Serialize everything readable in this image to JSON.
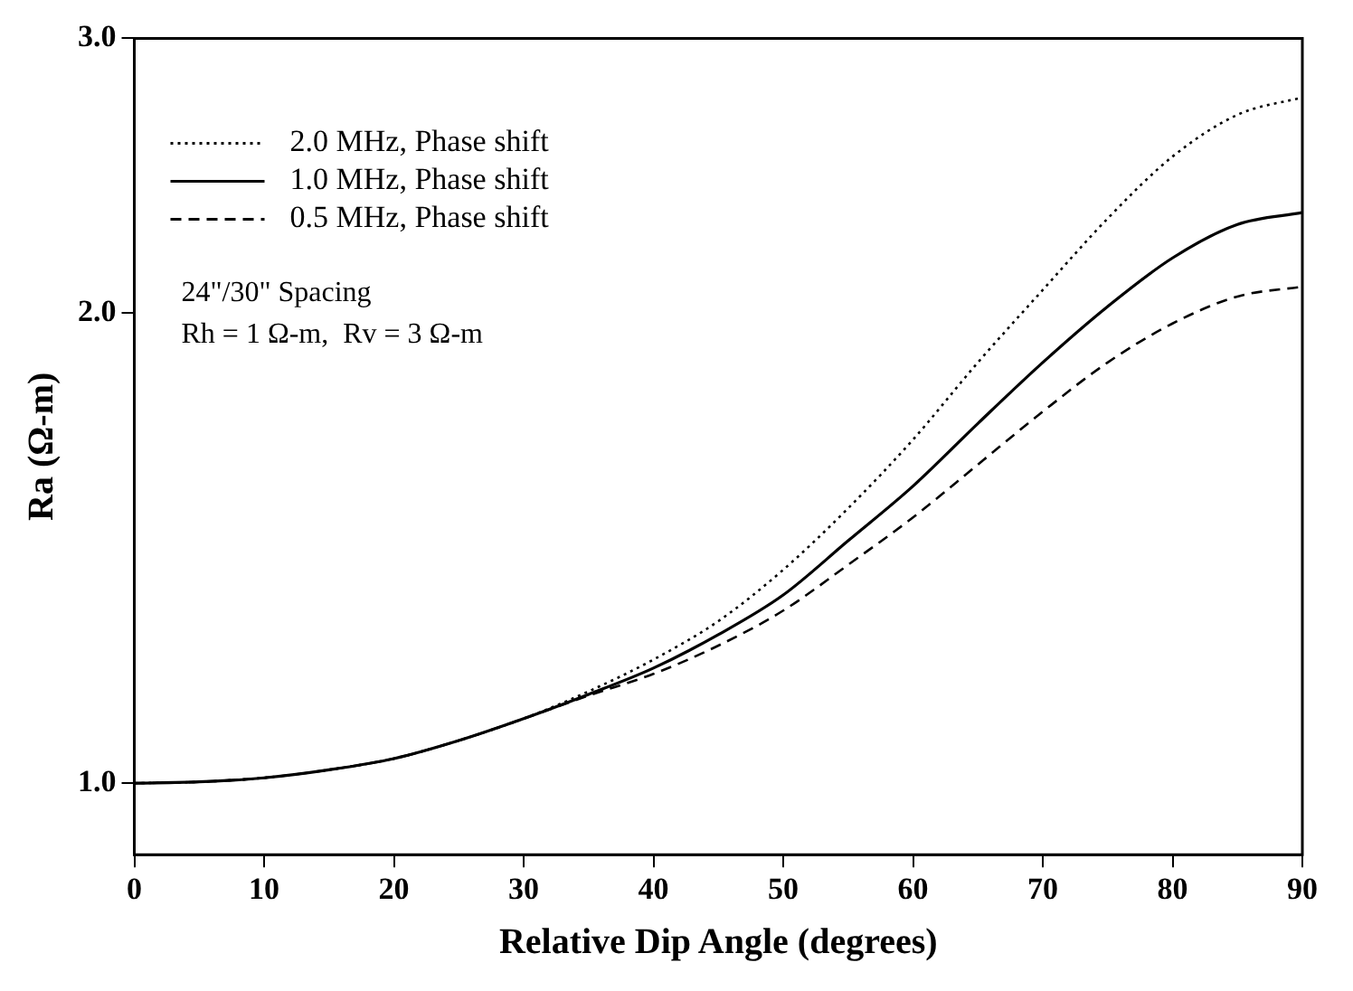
{
  "chart_data": {
    "type": "line",
    "xlabel": "Relative Dip Angle (degrees)",
    "ylabel": "Ra (Ω-m)",
    "x": [
      0,
      5,
      10,
      15,
      20,
      25,
      30,
      35,
      40,
      45,
      50,
      55,
      60,
      65,
      70,
      75,
      80,
      85,
      90
    ],
    "series": [
      {
        "name": "2.0 MHz, Phase shift",
        "color": "#000000",
        "line_style": "dotted",
        "values": [
          1.0,
          1.002,
          1.008,
          1.02,
          1.037,
          1.065,
          1.1,
          1.145,
          1.2,
          1.27,
          1.37,
          1.5,
          1.66,
          1.86,
          2.07,
          2.3,
          2.52,
          2.68,
          2.75
        ]
      },
      {
        "name": "1.0 MHz, Phase shift",
        "color": "#000000",
        "line_style": "solid",
        "values": [
          1.0,
          1.002,
          1.008,
          1.02,
          1.037,
          1.065,
          1.1,
          1.14,
          1.185,
          1.245,
          1.32,
          1.43,
          1.55,
          1.7,
          1.86,
          2.02,
          2.17,
          2.28,
          2.32
        ]
      },
      {
        "name": "0.5 MHz, Phase shift",
        "color": "#000000",
        "line_style": "dashed",
        "values": [
          1.0,
          1.002,
          1.008,
          1.02,
          1.037,
          1.065,
          1.1,
          1.138,
          1.175,
          1.225,
          1.29,
          1.38,
          1.48,
          1.6,
          1.73,
          1.86,
          1.97,
          2.05,
          2.08
        ]
      }
    ],
    "annotations": [
      "24\"/30\" Spacing",
      "Rh = 1 Ω-m,  Rv = 3 Ω-m"
    ],
    "xlim": [
      0,
      90
    ],
    "xticks": [
      0,
      10,
      20,
      30,
      40,
      50,
      60,
      70,
      80,
      90
    ],
    "ylim": [
      0.9,
      3.0
    ],
    "yticks": [
      {
        "value": 1,
        "label": "1.0"
      },
      {
        "value": 2,
        "label": "2.0"
      },
      {
        "value": 3,
        "label": "3.0"
      }
    ],
    "log": "y",
    "grid": false,
    "legend": "top left",
    "marker": "none"
  }
}
